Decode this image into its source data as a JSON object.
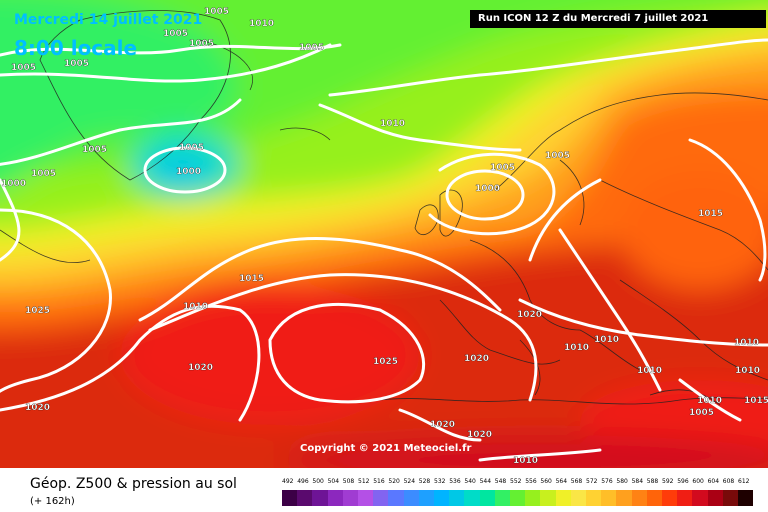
{
  "header": {
    "date": "Mercredi 14 juillet 2021",
    "time": "8:00 locale",
    "run": "Run ICON 12 Z du Mercredi 7 juillet 2021"
  },
  "copyright": "Copyright © 2021 Meteociel.fr",
  "footer": {
    "title": "Géop. Z500 & pression au sol",
    "lead": "(+ 162h)"
  },
  "isobar_labels": [
    "1005",
    "1010",
    "1005",
    "1005",
    "1005",
    "1005",
    "1005",
    "1010",
    "1005",
    "1000",
    "1000",
    "1005",
    "1005",
    "1000",
    "1015",
    "1025",
    "1010",
    "1015",
    "1020",
    "1025",
    "1020",
    "1010",
    "1010",
    "1010",
    "1010",
    "1010",
    "1005",
    "1020",
    "1020",
    "1020",
    "1010",
    "1020",
    "1010",
    "1005",
    "1015",
    "1005"
  ],
  "legend": {
    "values": [
      "492",
      "496",
      "500",
      "504",
      "508",
      "512",
      "516",
      "520",
      "524",
      "528",
      "532",
      "536",
      "540",
      "544",
      "548",
      "552",
      "556",
      "560",
      "564",
      "568",
      "572",
      "576",
      "580",
      "584",
      "588",
      "592",
      "596",
      "600",
      "604",
      "608",
      "612"
    ],
    "colors": [
      "#3c0046",
      "#5a0a6e",
      "#6e1496",
      "#8c28be",
      "#a03cd2",
      "#b450e6",
      "#8264f0",
      "#5a78ff",
      "#3c8cff",
      "#1ea0ff",
      "#00b4ff",
      "#00c8e6",
      "#00dcc8",
      "#00e6a0",
      "#32f064",
      "#64f032",
      "#96f01e",
      "#c8f01e",
      "#f0f028",
      "#fae646",
      "#ffd232",
      "#ffbe28",
      "#ffa01e",
      "#ff8214",
      "#ff640a",
      "#ff3c0a",
      "#f01e14",
      "#d20a1e",
      "#aa0014",
      "#780a0a",
      "#1e0000"
    ]
  }
}
